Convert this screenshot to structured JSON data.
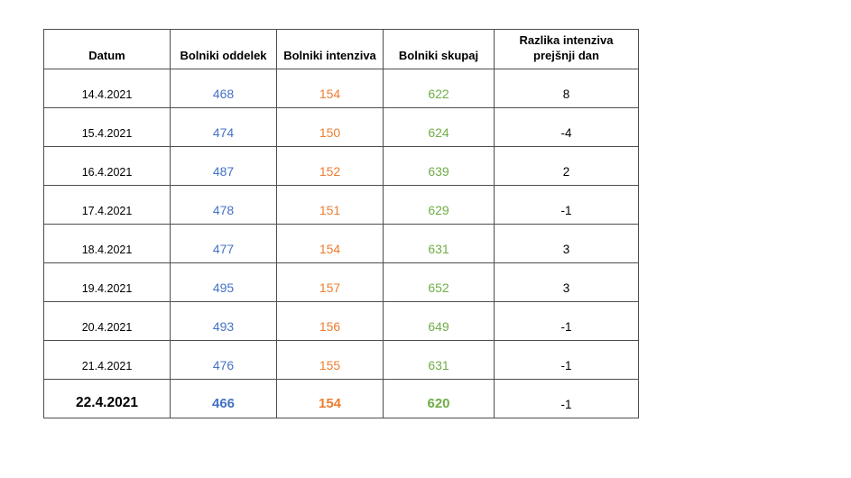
{
  "page": {
    "background": "#ffffff"
  },
  "chart_data": {
    "type": "table",
    "columns": [
      "Datum",
      "Bolniki oddelek",
      "Bolniki intenziva",
      "Bolniki skupaj",
      "Razlika intenziva prejšnji dan"
    ],
    "rows": [
      [
        "14.4.2021",
        468,
        154,
        622,
        8
      ],
      [
        "15.4.2021",
        474,
        150,
        624,
        -4
      ],
      [
        "16.4.2021",
        487,
        152,
        639,
        2
      ],
      [
        "17.4.2021",
        478,
        151,
        629,
        -1
      ],
      [
        "18.4.2021",
        477,
        154,
        631,
        3
      ],
      [
        "19.4.2021",
        495,
        157,
        652,
        3
      ],
      [
        "20.4.2021",
        493,
        156,
        649,
        -1
      ],
      [
        "21.4.2021",
        476,
        155,
        631,
        -1
      ],
      [
        "22.4.2021",
        466,
        154,
        620,
        -1
      ]
    ],
    "emphasized_row": "22.4.2021",
    "column_value_colors": {
      "Bolniki oddelek": "#4472C4",
      "Bolniki intenziva": "#ED7D31",
      "Bolniki skupaj": "#70AD47",
      "Razlika intenziva prejšnji dan": "#000000"
    }
  },
  "table": {
    "header": {
      "datum": "Datum",
      "oddelek": "Bolniki oddelek",
      "intenziva": "Bolniki intenziva",
      "skupaj": "Bolniki skupaj",
      "razlika": "Razlika intenziva\nprejšnji dan"
    },
    "rows": [
      {
        "datum": "14.4.2021",
        "oddelek": "468",
        "intenziva": "154",
        "skupaj": "622",
        "razlika": "8",
        "emphasized": false
      },
      {
        "datum": "15.4.2021",
        "oddelek": "474",
        "intenziva": "150",
        "skupaj": "624",
        "razlika": "-4",
        "emphasized": false
      },
      {
        "datum": "16.4.2021",
        "oddelek": "487",
        "intenziva": "152",
        "skupaj": "639",
        "razlika": "2",
        "emphasized": false
      },
      {
        "datum": "17.4.2021",
        "oddelek": "478",
        "intenziva": "151",
        "skupaj": "629",
        "razlika": "-1",
        "emphasized": false
      },
      {
        "datum": "18.4.2021",
        "oddelek": "477",
        "intenziva": "154",
        "skupaj": "631",
        "razlika": "3",
        "emphasized": false
      },
      {
        "datum": "19.4.2021",
        "oddelek": "495",
        "intenziva": "157",
        "skupaj": "652",
        "razlika": "3",
        "emphasized": false
      },
      {
        "datum": "20.4.2021",
        "oddelek": "493",
        "intenziva": "156",
        "skupaj": "649",
        "razlika": "-1",
        "emphasized": false
      },
      {
        "datum": "21.4.2021",
        "oddelek": "476",
        "intenziva": "155",
        "skupaj": "631",
        "razlika": "-1",
        "emphasized": false
      },
      {
        "datum": "22.4.2021",
        "oddelek": "466",
        "intenziva": "154",
        "skupaj": "620",
        "razlika": "-1",
        "emphasized": true
      }
    ]
  },
  "colors": {
    "oddelek_value": "#4472C4",
    "intenziva_value": "#ED7D31",
    "skupaj_value": "#70AD47",
    "text": "#000000",
    "border": "#4d4d4d",
    "background": "#ffffff"
  }
}
